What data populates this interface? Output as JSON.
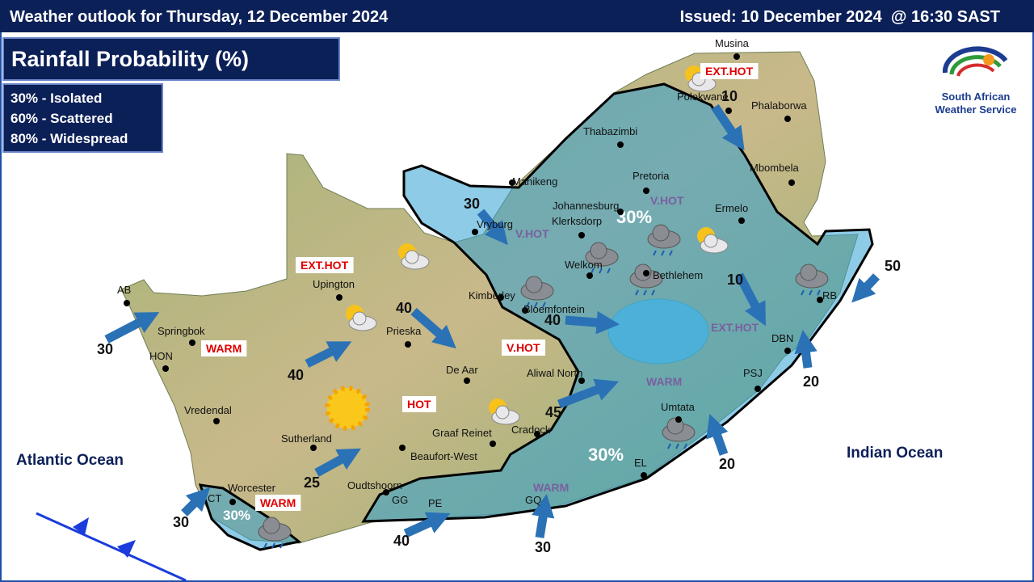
{
  "header": {
    "title": "Weather outlook for Thursday, 12 December 2024",
    "issued": "Issued: 10 December 2024  @ 16:30 SAST"
  },
  "panel": {
    "title": "Rainfall Probability (%)",
    "legend": [
      "30% - Isolated",
      "60% - Scattered",
      "80% - Widespread"
    ]
  },
  "logo": {
    "lines": [
      "South African",
      "Weather Service"
    ]
  },
  "oceans": [
    "Atlantic Ocean",
    "Indian Ocean"
  ],
  "places": [
    "Musina",
    "Polokwane",
    "Phalaborwa",
    "Thabazimbi",
    "Mbombela",
    "Mahikeng",
    "Pretoria",
    "Johannesburg",
    "Ermelo",
    "Klerksdorp",
    "Vryburg",
    "Welkom",
    "Bethlehem",
    "Kimberley",
    "Bloemfontein",
    "Upington",
    "Prieska",
    "AB",
    "Springbok",
    "HON",
    "De Aar",
    "Aliwal North",
    "Vredendal",
    "Sutherland",
    "Graaf Reinet",
    "Cradock",
    "Beaufort-West",
    "Umtata",
    "Worcester",
    "Oudtshoorn",
    "GG",
    "PE",
    "GQ",
    "EL",
    "PSJ",
    "DBN",
    "RB",
    "CT"
  ],
  "temperature_labels": [
    "EXT.HOT",
    "EXT.HOT",
    "V.HOT",
    "V.HOT",
    "V.HOT",
    "EXT.HOT",
    "WARM",
    "HOT",
    "WARM",
    "WARM",
    "WARM"
  ],
  "areas": [
    "30%",
    "30%",
    "30%"
  ],
  "arrows": [
    10,
    30,
    40,
    40,
    40,
    45,
    25,
    30,
    30,
    40,
    30,
    20,
    20,
    50,
    10
  ]
}
